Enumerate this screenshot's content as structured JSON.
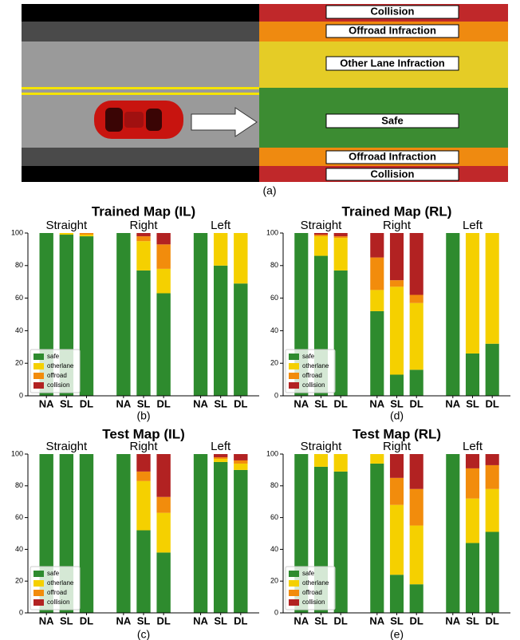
{
  "diagram": {
    "labels": [
      "Collision",
      "Offroad Infraction",
      "Other Lane Infraction",
      "Safe",
      "Offroad Infraction",
      "Collision"
    ],
    "caption": "(a)"
  },
  "chart_data": [
    {
      "type": "bar",
      "stacked": true,
      "title": "Trained Map (IL)",
      "caption": "(b)",
      "groups": [
        "Straight",
        "Right",
        "Left"
      ],
      "categories": [
        "NA",
        "SL",
        "DL",
        "NA",
        "SL",
        "DL",
        "NA",
        "SL",
        "DL"
      ],
      "series": [
        {
          "name": "safe",
          "color": "#2e8b2e",
          "values": [
            100,
            99,
            98,
            100,
            77,
            63,
            100,
            80,
            69
          ]
        },
        {
          "name": "otherlane",
          "color": "#f5d000",
          "values": [
            0,
            1,
            1,
            0,
            18,
            15,
            0,
            20,
            31
          ]
        },
        {
          "name": "offroad",
          "color": "#f28c0c",
          "values": [
            0,
            0,
            1,
            0,
            3,
            15,
            0,
            0,
            0
          ]
        },
        {
          "name": "collision",
          "color": "#b22222",
          "values": [
            0,
            0,
            0,
            0,
            2,
            7,
            0,
            0,
            0
          ]
        }
      ],
      "ylim": [
        0,
        100
      ],
      "yticks": [
        0,
        20,
        40,
        60,
        80,
        100
      ],
      "legend": "lower left"
    },
    {
      "type": "bar",
      "stacked": true,
      "title": "Trained Map (RL)",
      "caption": "(d)",
      "groups": [
        "Straight",
        "Right",
        "Left"
      ],
      "categories": [
        "NA",
        "SL",
        "DL",
        "NA",
        "SL",
        "DL",
        "NA",
        "SL",
        "DL"
      ],
      "series": [
        {
          "name": "safe",
          "color": "#2e8b2e",
          "values": [
            100,
            86,
            77,
            52,
            13,
            16,
            100,
            26,
            32
          ]
        },
        {
          "name": "otherlane",
          "color": "#f5d000",
          "values": [
            0,
            12,
            20,
            13,
            54,
            41,
            0,
            74,
            68
          ]
        },
        {
          "name": "offroad",
          "color": "#f28c0c",
          "values": [
            0,
            1,
            1,
            20,
            4,
            5,
            0,
            0,
            0
          ]
        },
        {
          "name": "collision",
          "color": "#b22222",
          "values": [
            0,
            1,
            2,
            15,
            29,
            38,
            0,
            0,
            0
          ]
        }
      ],
      "ylim": [
        0,
        100
      ],
      "yticks": [
        0,
        20,
        40,
        60,
        80,
        100
      ],
      "legend": "lower left"
    },
    {
      "type": "bar",
      "stacked": true,
      "title": "Test Map (IL)",
      "caption": "(c)",
      "groups": [
        "Straight",
        "Right",
        "Left"
      ],
      "categories": [
        "NA",
        "SL",
        "DL",
        "NA",
        "SL",
        "DL",
        "NA",
        "SL",
        "DL"
      ],
      "series": [
        {
          "name": "safe",
          "color": "#2e8b2e",
          "values": [
            100,
            100,
            100,
            100,
            52,
            38,
            100,
            95,
            90
          ]
        },
        {
          "name": "otherlane",
          "color": "#f5d000",
          "values": [
            0,
            0,
            0,
            0,
            31,
            25,
            0,
            2,
            4
          ]
        },
        {
          "name": "offroad",
          "color": "#f28c0c",
          "values": [
            0,
            0,
            0,
            0,
            6,
            10,
            0,
            1,
            2
          ]
        },
        {
          "name": "collision",
          "color": "#b22222",
          "values": [
            0,
            0,
            0,
            0,
            11,
            27,
            0,
            2,
            4
          ]
        }
      ],
      "ylim": [
        0,
        100
      ],
      "yticks": [
        0,
        20,
        40,
        60,
        80,
        100
      ],
      "legend": "lower left"
    },
    {
      "type": "bar",
      "stacked": true,
      "title": "Test Map (RL)",
      "caption": "(e)",
      "groups": [
        "Straight",
        "Right",
        "Left"
      ],
      "categories": [
        "NA",
        "SL",
        "DL",
        "NA",
        "SL",
        "DL",
        "NA",
        "SL",
        "DL"
      ],
      "series": [
        {
          "name": "safe",
          "color": "#2e8b2e",
          "values": [
            100,
            92,
            89,
            94,
            24,
            18,
            100,
            44,
            51
          ]
        },
        {
          "name": "otherlane",
          "color": "#f5d000",
          "values": [
            0,
            8,
            11,
            6,
            44,
            37,
            0,
            28,
            27
          ]
        },
        {
          "name": "offroad",
          "color": "#f28c0c",
          "values": [
            0,
            0,
            0,
            0,
            17,
            23,
            0,
            19,
            15
          ]
        },
        {
          "name": "collision",
          "color": "#b22222",
          "values": [
            0,
            0,
            0,
            0,
            15,
            22,
            0,
            9,
            7
          ]
        }
      ],
      "ylim": [
        0,
        100
      ],
      "yticks": [
        0,
        20,
        40,
        60,
        80,
        100
      ],
      "legend": "lower left"
    }
  ]
}
